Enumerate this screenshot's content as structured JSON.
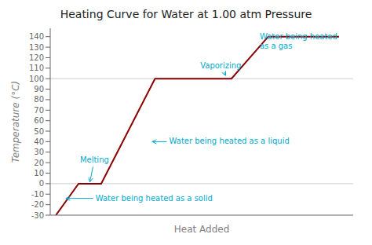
{
  "chart_data": {
    "type": "line",
    "title": "Heating Curve for Water at 1.00 atm Pressure",
    "xlabel": "Heat Added",
    "ylabel": "Temperature (°C)",
    "x": [
      0,
      0.8,
      1.6,
      3.5,
      6.2,
      7.5,
      10.0
    ],
    "values": [
      -30,
      0,
      0,
      100,
      100,
      140,
      140
    ],
    "color": "#8b0000",
    "xlim": [
      -0.2,
      10.5
    ],
    "ylim": [
      -30,
      148
    ],
    "yticks": [
      -30,
      -20,
      -10,
      0,
      10,
      20,
      30,
      40,
      50,
      60,
      70,
      80,
      90,
      100,
      110,
      120,
      130,
      140
    ],
    "hlines": [
      0,
      100
    ],
    "tick_labels": "y",
    "grid": false,
    "annotations": [
      {
        "text": "Water being heated as a solid",
        "text_x": 1.4,
        "text_y": -14,
        "x": 0.35,
        "y": -14,
        "color": "#00aacc"
      },
      {
        "text": "Melting",
        "text_x": 0.85,
        "text_y": 22,
        "x": 1.2,
        "y": 1.5,
        "color": "#00aacc"
      },
      {
        "text": "Water being heated as a liquid",
        "text_x": 4.0,
        "text_y": 40,
        "x": 3.4,
        "y": 40,
        "color": "#00aacc"
      },
      {
        "text": "Vaporizing",
        "text_x": 5.1,
        "text_y": 112,
        "x": 6.0,
        "y": 103,
        "color": "#00aacc"
      },
      {
        "text": "Water being heated\nas a gas",
        "text_x": 7.2,
        "text_y": 135,
        "x": 9.2,
        "y": 127,
        "color": "#00aacc"
      }
    ]
  }
}
